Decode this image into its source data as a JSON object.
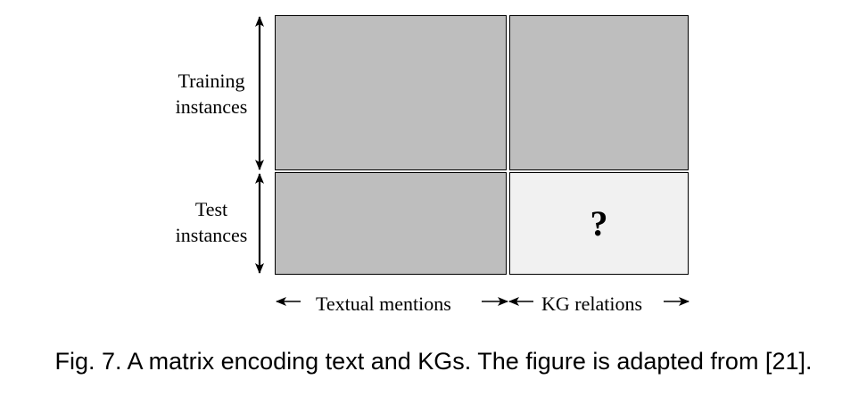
{
  "diagram": {
    "rows": [
      {
        "id": "training",
        "label_lines": [
          "Training",
          "instances"
        ]
      },
      {
        "id": "test",
        "label_lines": [
          "Test",
          "instances"
        ]
      }
    ],
    "columns": [
      {
        "id": "textual",
        "label": "Textual mentions"
      },
      {
        "id": "kg",
        "label": "KG relations"
      }
    ],
    "cells": {
      "training_textual": {
        "fill": "#bebebe"
      },
      "training_kg": {
        "fill": "#bebebe"
      },
      "test_textual": {
        "fill": "#bebebe"
      },
      "test_kg": {
        "fill": "#f1f1f1",
        "mark": "?"
      }
    },
    "colors": {
      "known": "#bebebe",
      "unknown": "#f1f1f1",
      "stroke": "#000000"
    }
  },
  "caption": "Fig. 7. A matrix encoding text and KGs. The figure is adapted from [21]."
}
